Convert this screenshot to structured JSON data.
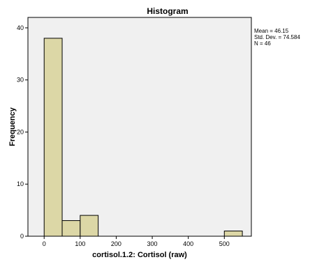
{
  "chart_data": {
    "type": "bar",
    "title": "Histogram",
    "xlabel": "cortisol.1.2: Cortisol (raw)",
    "ylabel": "Frequency",
    "xlim": [
      -45,
      575
    ],
    "ylim": [
      0,
      42
    ],
    "x_ticks": [
      0,
      100,
      200,
      300,
      400,
      500
    ],
    "y_ticks": [
      0,
      10,
      20,
      30,
      40
    ],
    "bin_width": 50,
    "bins": [
      {
        "start": 0,
        "end": 50,
        "count": 38
      },
      {
        "start": 50,
        "end": 100,
        "count": 3
      },
      {
        "start": 100,
        "end": 150,
        "count": 4
      },
      {
        "start": 500,
        "end": 550,
        "count": 1
      }
    ],
    "statistics": {
      "mean": "Mean = 46.15",
      "std_dev": "Std. Dev. = 74.584",
      "n": "N = 46"
    },
    "grid": false,
    "colors": {
      "bar_fill": "#dcd7a6",
      "bar_stroke": "#000000",
      "plot_background": "#f0f0f0",
      "outer_background": "#ffffff"
    }
  }
}
